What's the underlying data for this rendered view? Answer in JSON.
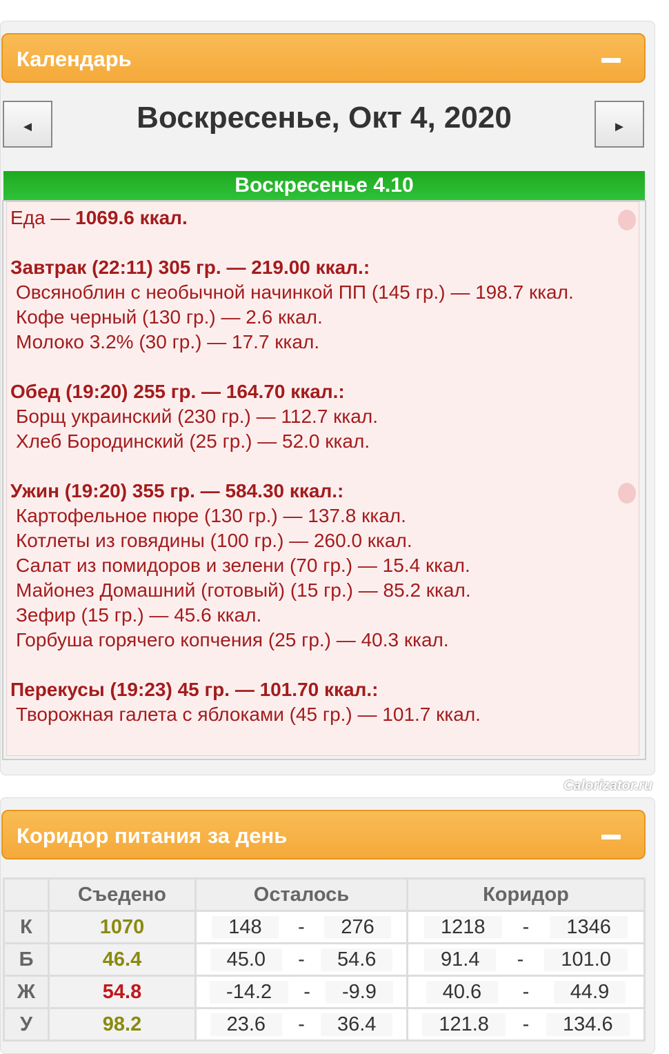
{
  "calendar": {
    "title": "Календарь",
    "collapse_icon": "minus-icon",
    "date": "Воскресенье, Окт 4, 2020",
    "prev": "◄",
    "next": "►",
    "day_bar": "Воскресенье 4.10"
  },
  "food": {
    "label": "Еда — ",
    "total": "1069.6 ккал.",
    "meals": [
      {
        "header": "Завтрак (22:11) 305 гр. — 219.00 ккал.:",
        "items": [
          "Овсяноблин с необычной начинкой ПП (145 гр.) — 198.7 ккал.",
          "Кофе черный (130 гр.) — 2.6 ккал.",
          "Молоко 3.2% (30 гр.) — 17.7 ккал."
        ]
      },
      {
        "header": "Обед (19:20) 255 гр. — 164.70 ккал.:",
        "items": [
          "Борщ украинский (230 гр.) — 112.7 ккал.",
          "Хлеб Бородинский (25 гр.) — 52.0 ккал."
        ]
      },
      {
        "header": "Ужин (19:20) 355 гр. — 584.30 ккал.:",
        "items": [
          "Картофельное пюре (130 гр.) — 137.8 ккал.",
          "Котлеты из говядины (100 гр.) — 260.0 ккал.",
          "Салат из помидоров и зелени (70 гр.) — 15.4 ккал.",
          "Майонез Домашний (готовый) (15 гр.) — 85.2 ккал.",
          "Зефир (15 гр.) — 45.6 ккал.",
          "Горбуша горячего копчения (25 гр.) — 40.3 ккал."
        ]
      },
      {
        "header": "Перекусы (19:23) 45 гр. — 101.70 ккал.:",
        "items": [
          "Творожная галета с яблоками (45 гр.) — 101.7 ккал."
        ]
      }
    ]
  },
  "corridor": {
    "title": "Коридор питания за день",
    "headers": [
      "",
      "Съедено",
      "Осталось",
      "Коридор"
    ],
    "rows": [
      {
        "label": "К",
        "eaten": "1070",
        "color": "#8a8a10",
        "rem": [
          "148",
          "276"
        ],
        "cor": [
          "1218",
          "1346"
        ]
      },
      {
        "label": "Б",
        "eaten": "46.4",
        "color": "#8a8a10",
        "rem": [
          "45.0",
          "54.6"
        ],
        "cor": [
          "91.4",
          "101.0"
        ]
      },
      {
        "label": "Ж",
        "eaten": "54.8",
        "color": "#c0181e",
        "rem": [
          "-14.2",
          "-9.9"
        ],
        "cor": [
          "40.6",
          "44.9"
        ]
      },
      {
        "label": "У",
        "eaten": "98.2",
        "color": "#8a8a10",
        "rem": [
          "23.6",
          "36.4"
        ],
        "cor": [
          "121.8",
          "134.6"
        ]
      }
    ],
    "dash": "-"
  },
  "watermark": "Calorizator.ru"
}
